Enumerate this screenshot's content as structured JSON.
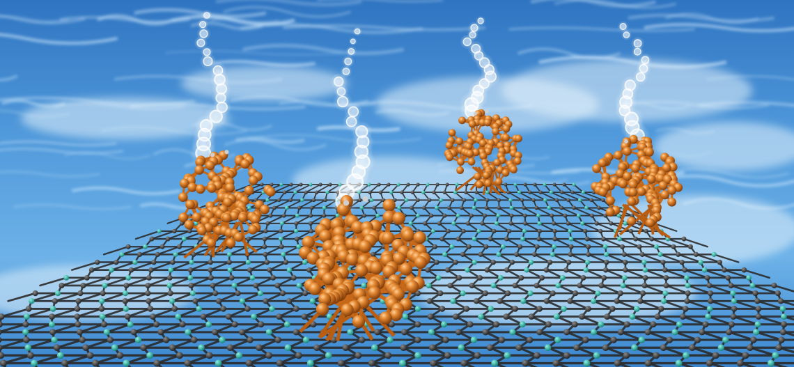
{
  "image": {
    "subject": "illustration",
    "colors": {
      "water_top": "#3f86cf",
      "water_mid": "#5da7e4",
      "water_light": "#cfe6f7",
      "copper": "#d0701e",
      "copper_light": "#f2a25a",
      "copper_dark": "#8a3f08",
      "carbon": "#2d2d2d",
      "nitrogen": "#1aa89a",
      "bubble": "#ffffff"
    },
    "clusters": [
      {
        "name": "cluster-left"
      },
      {
        "name": "cluster-center-front"
      },
      {
        "name": "cluster-back-middle"
      },
      {
        "name": "cluster-right"
      }
    ]
  }
}
